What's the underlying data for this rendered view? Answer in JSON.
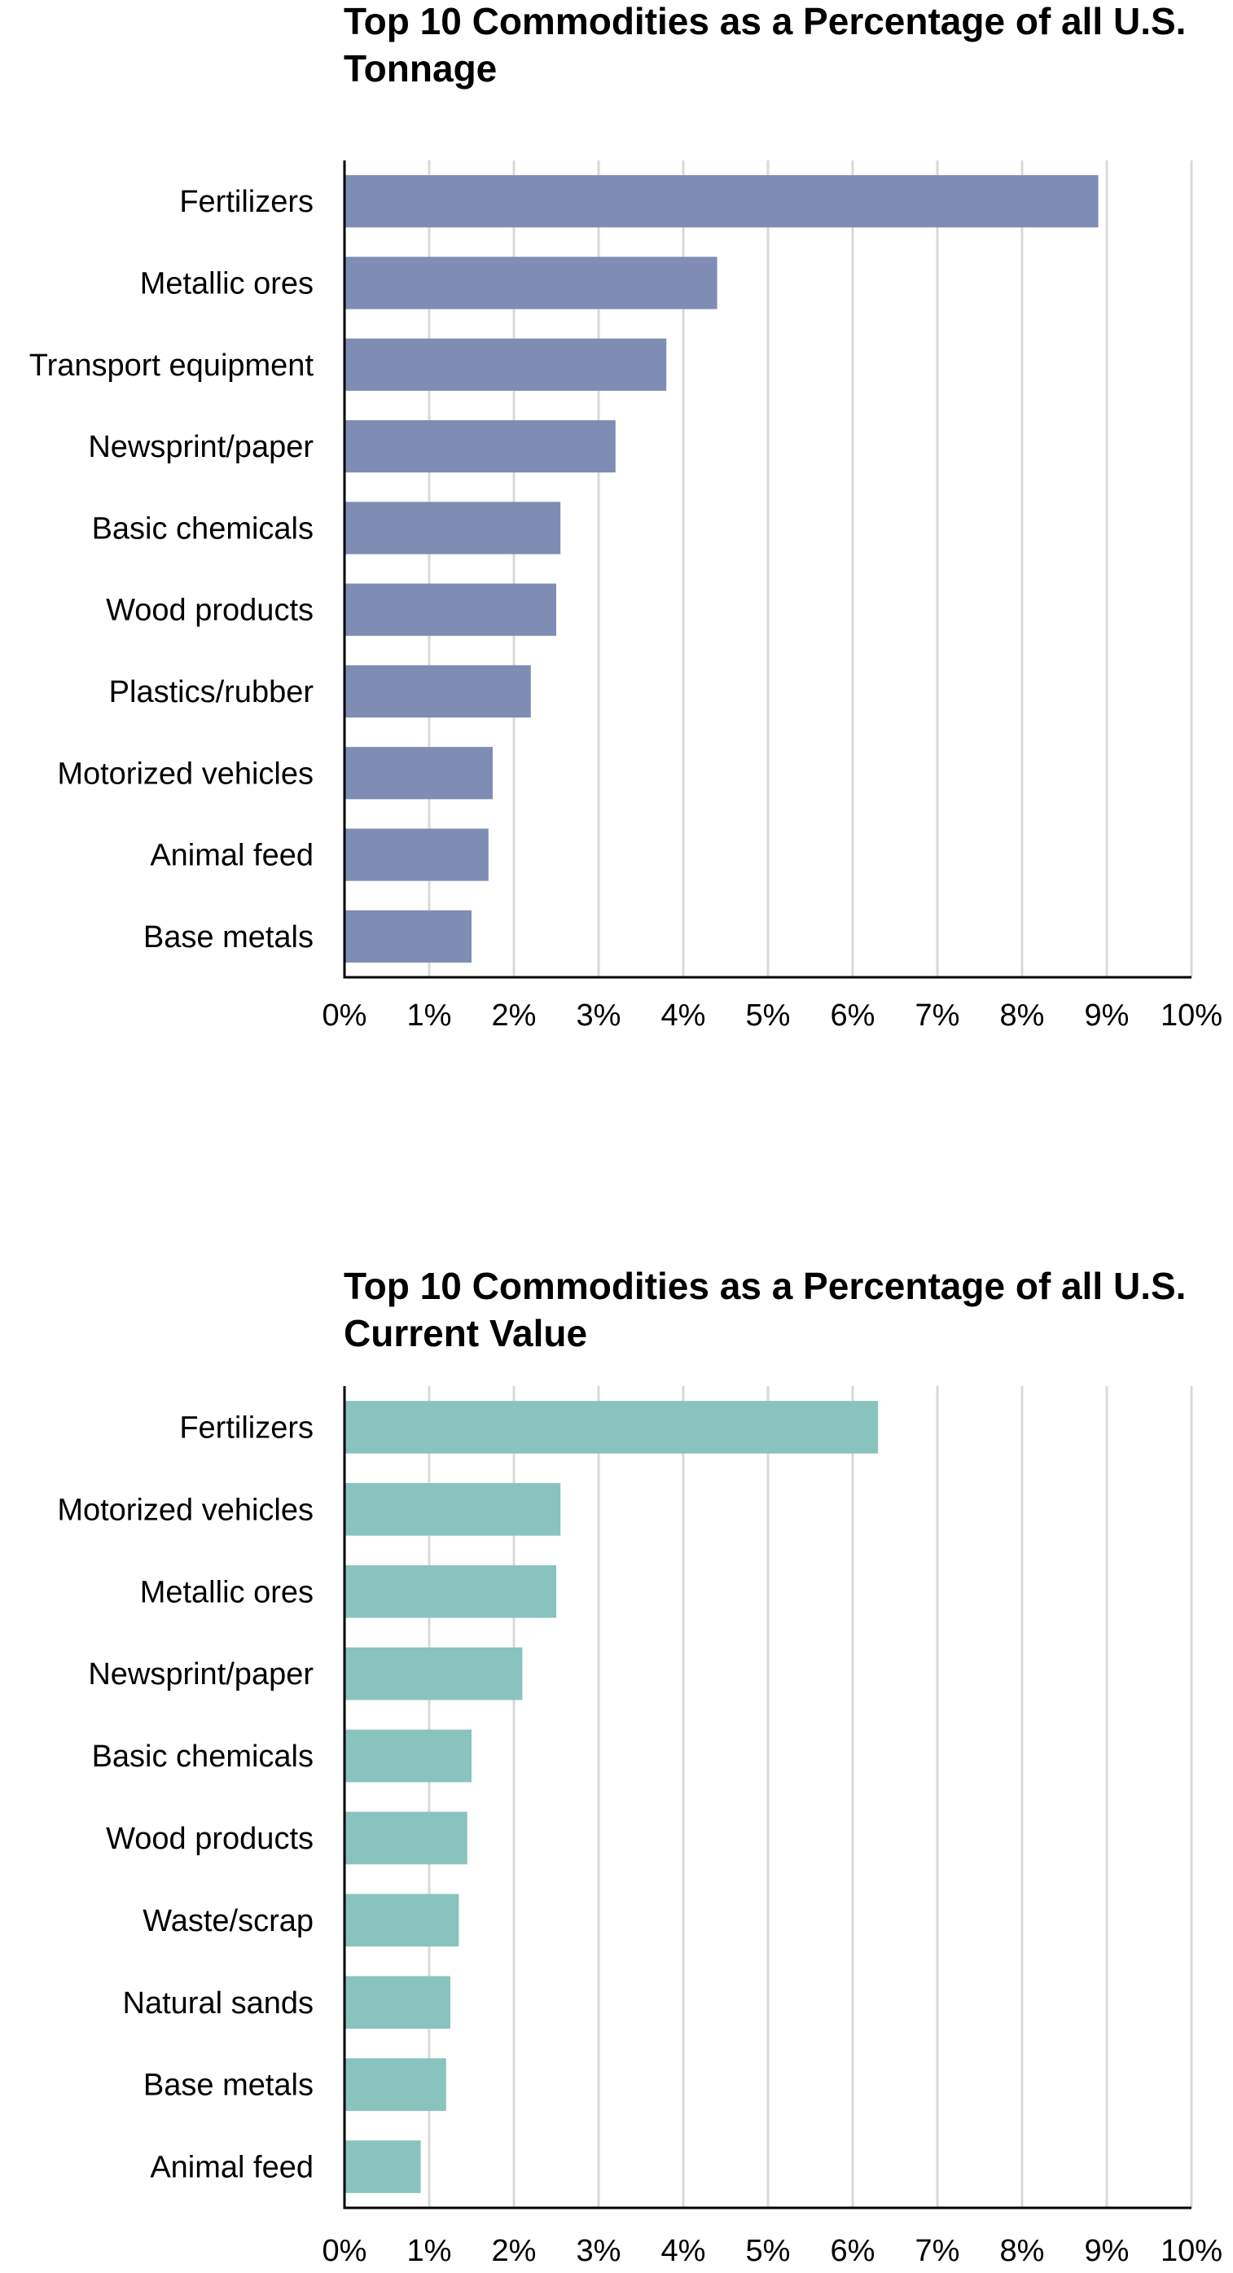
{
  "chart_data": [
    {
      "type": "bar",
      "orientation": "horizontal",
      "title": "Top 10 Commodities as a Percentage of all U.S. Tonnage",
      "categories": [
        "Fertilizers",
        "Metallic ores",
        "Transport equipment",
        "Newsprint/paper",
        "Basic chemicals",
        "Wood products",
        "Plastics/rubber",
        "Motorized vehicles",
        "Animal feed",
        "Base metals"
      ],
      "values": [
        8.9,
        4.4,
        3.8,
        3.2,
        2.55,
        2.5,
        2.2,
        1.75,
        1.7,
        1.5
      ],
      "xlim": [
        0,
        10
      ],
      "xticks": [
        "0%",
        "1%",
        "2%",
        "3%",
        "4%",
        "5%",
        "6%",
        "7%",
        "8%",
        "9%",
        "10%"
      ],
      "color": "#7f8db5",
      "grid": "vertical"
    },
    {
      "type": "bar",
      "orientation": "horizontal",
      "title": "Top 10 Commodities as a Percentage of all U.S. Current Value",
      "categories": [
        "Fertilizers",
        "Motorized vehicles",
        "Metallic ores",
        "Newsprint/paper",
        "Basic chemicals",
        "Wood products",
        "Waste/scrap",
        "Natural sands",
        "Base metals",
        "Animal feed"
      ],
      "values": [
        6.3,
        2.55,
        2.5,
        2.1,
        1.5,
        1.45,
        1.35,
        1.25,
        1.2,
        0.9
      ],
      "xlim": [
        0,
        10
      ],
      "xticks": [
        "0%",
        "1%",
        "2%",
        "3%",
        "4%",
        "5%",
        "6%",
        "7%",
        "8%",
        "9%",
        "10%"
      ],
      "color": "#88c4bd",
      "grid": "vertical"
    }
  ]
}
